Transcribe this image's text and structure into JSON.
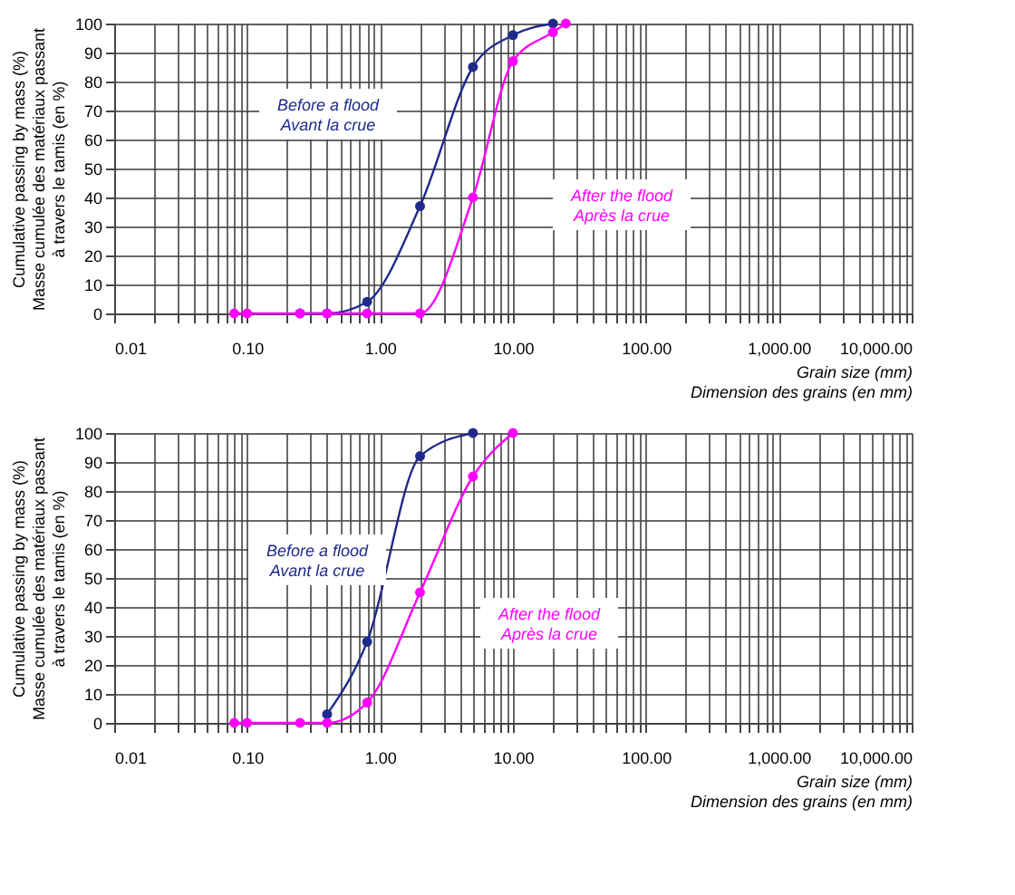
{
  "chart_data": [
    {
      "type": "line",
      "xlabel": "Grain size (mm)\nDimension des grains (en mm)",
      "ylabel": "Cumulative passing by mass (%)\nMasse cumulée des matériaux passant\nà travers le tamis (en %)",
      "log": "x",
      "grid": true,
      "legend": false,
      "marker": "circle",
      "line_style": "solid",
      "xlim": [
        0.01,
        10000
      ],
      "ylim": [
        0,
        100
      ],
      "yticks": [
        0,
        10,
        20,
        30,
        40,
        50,
        60,
        70,
        80,
        90,
        100
      ],
      "xticks": [
        {
          "value": 0.01,
          "label": "0.01"
        },
        {
          "value": 0.02,
          "label": null
        },
        {
          "value": 0.03,
          "label": null
        },
        {
          "value": 0.04,
          "label": null
        },
        {
          "value": 0.05,
          "label": null
        },
        {
          "value": 0.06,
          "label": null
        },
        {
          "value": 0.07,
          "label": null
        },
        {
          "value": 0.08,
          "label": null
        },
        {
          "value": 0.09,
          "label": null
        },
        {
          "value": 0.1,
          "label": "0.10"
        },
        {
          "value": 0.2,
          "label": null
        },
        {
          "value": 0.3,
          "label": null
        },
        {
          "value": 0.4,
          "label": null
        },
        {
          "value": 0.5,
          "label": null
        },
        {
          "value": 0.6,
          "label": null
        },
        {
          "value": 0.7,
          "label": null
        },
        {
          "value": 0.8,
          "label": null
        },
        {
          "value": 0.9,
          "label": null
        },
        {
          "value": 1,
          "label": "1.00"
        },
        {
          "value": 2,
          "label": null
        },
        {
          "value": 3,
          "label": null
        },
        {
          "value": 4,
          "label": null
        },
        {
          "value": 5,
          "label": null
        },
        {
          "value": 6,
          "label": null
        },
        {
          "value": 7,
          "label": null
        },
        {
          "value": 8,
          "label": null
        },
        {
          "value": 9,
          "label": null
        },
        {
          "value": 10,
          "label": "10.00"
        },
        {
          "value": 20,
          "label": null
        },
        {
          "value": 30,
          "label": null
        },
        {
          "value": 40,
          "label": null
        },
        {
          "value": 50,
          "label": null
        },
        {
          "value": 60,
          "label": null
        },
        {
          "value": 70,
          "label": null
        },
        {
          "value": 80,
          "label": null
        },
        {
          "value": 90,
          "label": null
        },
        {
          "value": 100,
          "label": "100.00"
        },
        {
          "value": 200,
          "label": null
        },
        {
          "value": 300,
          "label": null
        },
        {
          "value": 400,
          "label": null
        },
        {
          "value": 500,
          "label": null
        },
        {
          "value": 600,
          "label": null
        },
        {
          "value": 700,
          "label": null
        },
        {
          "value": 800,
          "label": null
        },
        {
          "value": 900,
          "label": null
        },
        {
          "value": 1000,
          "label": "1,000.00"
        },
        {
          "value": 2000,
          "label": null
        },
        {
          "value": 3000,
          "label": null
        },
        {
          "value": 4000,
          "label": null
        },
        {
          "value": 5000,
          "label": null
        },
        {
          "value": 6000,
          "label": null
        },
        {
          "value": 7000,
          "label": null
        },
        {
          "value": 8000,
          "label": null
        },
        {
          "value": 9000,
          "label": null
        },
        {
          "value": 10000,
          "label": "10,000.00"
        }
      ],
      "series": [
        {
          "name": "Before a flood\nAvant la crue",
          "color": "#1f2a8a",
          "x": [
            0.25,
            0.4,
            0.8,
            2,
            5,
            10,
            20
          ],
          "values": [
            0,
            0,
            4,
            37,
            85,
            96,
            100
          ]
        },
        {
          "name": "After the flood\nAprès la crue",
          "color": "#ff00ff",
          "x": [
            0.08,
            0.1,
            0.25,
            0.4,
            0.8,
            2,
            5,
            10,
            20,
            25
          ],
          "values": [
            0,
            0,
            0,
            0,
            0,
            0,
            40,
            87,
            97,
            100
          ]
        }
      ]
    },
    {
      "type": "line",
      "xlabel": "Grain size (mm)\nDimension des grains (en mm)",
      "ylabel": "Cumulative passing by mass (%)\nMasse cumulée des matériaux passant\nà travers le tamis (en %)",
      "log": "x",
      "grid": true,
      "legend": false,
      "marker": "circle",
      "line_style": "solid",
      "xlim": [
        0.01,
        10000
      ],
      "ylim": [
        0,
        100
      ],
      "yticks": [
        0,
        10,
        20,
        30,
        40,
        50,
        60,
        70,
        80,
        90,
        100
      ],
      "xticks": [
        {
          "value": 0.01,
          "label": "0.01"
        },
        {
          "value": 0.02,
          "label": null
        },
        {
          "value": 0.03,
          "label": null
        },
        {
          "value": 0.04,
          "label": null
        },
        {
          "value": 0.05,
          "label": null
        },
        {
          "value": 0.06,
          "label": null
        },
        {
          "value": 0.07,
          "label": null
        },
        {
          "value": 0.08,
          "label": null
        },
        {
          "value": 0.09,
          "label": null
        },
        {
          "value": 0.1,
          "label": "0.10"
        },
        {
          "value": 0.2,
          "label": null
        },
        {
          "value": 0.3,
          "label": null
        },
        {
          "value": 0.4,
          "label": null
        },
        {
          "value": 0.5,
          "label": null
        },
        {
          "value": 0.6,
          "label": null
        },
        {
          "value": 0.7,
          "label": null
        },
        {
          "value": 0.8,
          "label": null
        },
        {
          "value": 0.9,
          "label": null
        },
        {
          "value": 1,
          "label": "1.00"
        },
        {
          "value": 2,
          "label": null
        },
        {
          "value": 3,
          "label": null
        },
        {
          "value": 4,
          "label": null
        },
        {
          "value": 5,
          "label": null
        },
        {
          "value": 6,
          "label": null
        },
        {
          "value": 7,
          "label": null
        },
        {
          "value": 8,
          "label": null
        },
        {
          "value": 9,
          "label": null
        },
        {
          "value": 10,
          "label": "10.00"
        },
        {
          "value": 20,
          "label": null
        },
        {
          "value": 30,
          "label": null
        },
        {
          "value": 40,
          "label": null
        },
        {
          "value": 50,
          "label": null
        },
        {
          "value": 60,
          "label": null
        },
        {
          "value": 70,
          "label": null
        },
        {
          "value": 80,
          "label": null
        },
        {
          "value": 90,
          "label": null
        },
        {
          "value": 100,
          "label": "100.00"
        },
        {
          "value": 200,
          "label": null
        },
        {
          "value": 300,
          "label": null
        },
        {
          "value": 400,
          "label": null
        },
        {
          "value": 500,
          "label": null
        },
        {
          "value": 600,
          "label": null
        },
        {
          "value": 700,
          "label": null
        },
        {
          "value": 800,
          "label": null
        },
        {
          "value": 900,
          "label": null
        },
        {
          "value": 1000,
          "label": "1,000.00"
        },
        {
          "value": 2000,
          "label": null
        },
        {
          "value": 3000,
          "label": null
        },
        {
          "value": 4000,
          "label": null
        },
        {
          "value": 5000,
          "label": null
        },
        {
          "value": 6000,
          "label": null
        },
        {
          "value": 7000,
          "label": null
        },
        {
          "value": 8000,
          "label": null
        },
        {
          "value": 9000,
          "label": null
        },
        {
          "value": 10000,
          "label": "10,000.00"
        }
      ],
      "series": [
        {
          "name": "Before a flood\nAvant la crue",
          "color": "#1f2a8a",
          "x": [
            0.4,
            0.8,
            2,
            5
          ],
          "values": [
            3,
            28,
            92,
            100
          ]
        },
        {
          "name": "After the flood\nAprès la crue",
          "color": "#ff00ff",
          "x": [
            0.08,
            0.1,
            0.25,
            0.4,
            0.8,
            2,
            5,
            10
          ],
          "values": [
            0,
            0,
            0,
            0,
            7,
            45,
            85,
            100
          ]
        }
      ]
    }
  ]
}
